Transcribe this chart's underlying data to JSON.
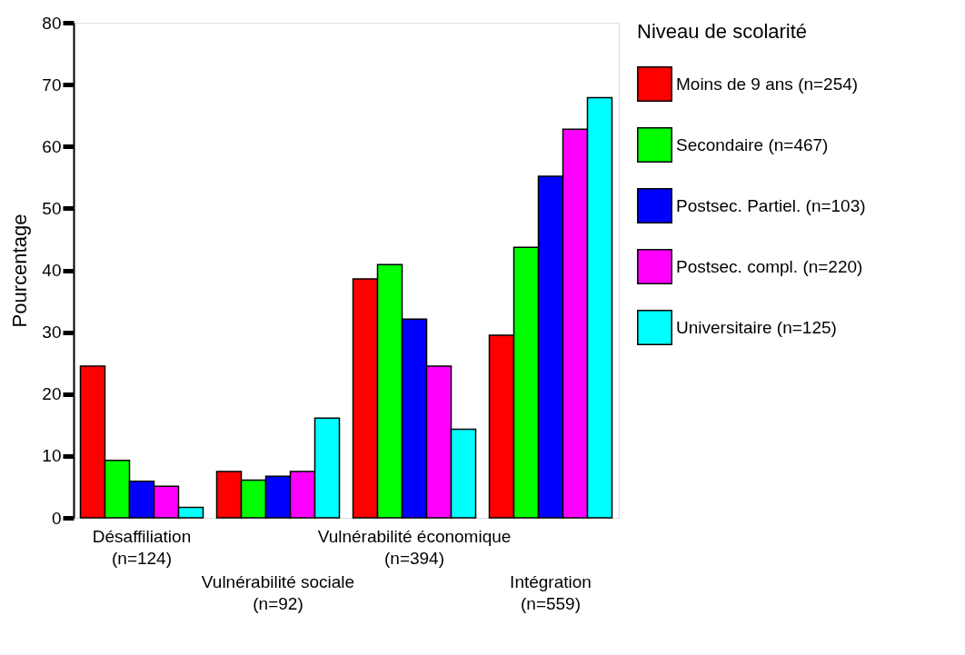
{
  "chart_data": {
    "type": "bar",
    "ylabel": "Pourcentage",
    "legend_title": "Niveau de scolarité",
    "categories": [
      "Désaffiliation (n=124)",
      "Vulnérabilité sociale (n=92)",
      "Vulnérabilité économique (n=394)",
      "Intégration (n=559)"
    ],
    "series": [
      {
        "name": "Moins de 9 ans (n=254)",
        "color": "#ff0000",
        "values": [
          24.5,
          7.5,
          38.6,
          29.5
        ]
      },
      {
        "name": "Secondaire (n=467)",
        "color": "#00ff00",
        "values": [
          9.3,
          6.1,
          40.9,
          43.7
        ]
      },
      {
        "name": "Postsec. Partiel. (n=103)",
        "color": "#0000ff",
        "values": [
          5.9,
          6.7,
          32.1,
          55.2
        ]
      },
      {
        "name": "Postsec. compl. (n=220)",
        "color": "#ff00ff",
        "values": [
          5.1,
          7.5,
          24.5,
          62.8
        ]
      },
      {
        "name": "Universitaire (n=125)",
        "color": "#00ffff",
        "values": [
          1.7,
          16.1,
          14.3,
          67.9
        ]
      }
    ],
    "ylim": [
      0,
      80
    ],
    "yticks": [
      0,
      10,
      20,
      30,
      40,
      50,
      60,
      70,
      80
    ],
    "grid": false,
    "legend": "right"
  }
}
